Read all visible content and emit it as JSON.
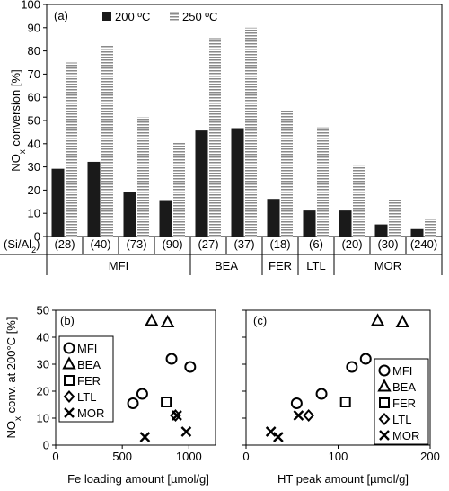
{
  "chart_data": [
    {
      "panel_label": "(a)",
      "type": "bar",
      "ylabel": "NOx conversion  [%]",
      "ylabel_main": "NO",
      "ylabel_sub": "x",
      "ylabel_rest": " conversion  [%]",
      "ylim": [
        0,
        100
      ],
      "yticks": [
        "0",
        "10",
        "20",
        "30",
        "40",
        "50",
        "60",
        "70",
        "80",
        "90",
        "100"
      ],
      "row_label": "(Si/Al",
      "row_label_sub": "2",
      "row_label_end": ")",
      "categories": [
        "(28)",
        "(40)",
        "(73)",
        "(90)",
        "(27)",
        "(37)",
        "(18)",
        "(6)",
        "(20)",
        "(30)",
        "(240)"
      ],
      "groups": [
        {
          "name": "MFI",
          "count": 4
        },
        {
          "name": "BEA",
          "count": 2
        },
        {
          "name": "FER",
          "count": 1
        },
        {
          "name": "LTL",
          "count": 1
        },
        {
          "name": "MOR",
          "count": 3
        }
      ],
      "series": [
        {
          "name": "200 ºC",
          "values": [
            29,
            32,
            19,
            15.5,
            45.5,
            46.5,
            16,
            11,
            11,
            5,
            3
          ],
          "style": "solid",
          "color": "#1a1a1a"
        },
        {
          "name": "250 ºC",
          "values": [
            75,
            82.5,
            51.5,
            40.5,
            85.5,
            90,
            54.5,
            47,
            30.5,
            16,
            7.5
          ],
          "style": "hatched",
          "color": "#8a8a8a"
        }
      ],
      "grid": false,
      "legend_position": "top"
    },
    {
      "panel_label": "(b)",
      "type": "scatter",
      "ylabel": "NOx conv. at 200°C  [%]",
      "ylabel_main": "NO",
      "ylabel_sub": "x",
      "ylabel_rest": " conv. at 200°C  [%]",
      "xlabel": "Fe loading amount  [µmol/g]",
      "xlim": [
        0,
        1200
      ],
      "ylim": [
        0,
        50
      ],
      "xticks": [
        "0",
        "500",
        "1000"
      ],
      "yticks": [
        "0",
        "10",
        "20",
        "30",
        "40",
        "50"
      ],
      "legend_position": "left",
      "series": [
        {
          "name": "MFI",
          "marker": "circle",
          "x": [
            580,
            650,
            870,
            1010
          ],
          "y": [
            15.5,
            19,
            32,
            29
          ]
        },
        {
          "name": "BEA",
          "marker": "triangle",
          "x": [
            720,
            840
          ],
          "y": [
            46,
            45.5
          ]
        },
        {
          "name": "FER",
          "marker": "square",
          "x": [
            830
          ],
          "y": [
            16
          ]
        },
        {
          "name": "LTL",
          "marker": "diamond",
          "x": [
            900
          ],
          "y": [
            11
          ]
        },
        {
          "name": "MOR",
          "marker": "x",
          "x": [
            670,
            910,
            980
          ],
          "y": [
            3,
            11,
            5
          ]
        }
      ]
    },
    {
      "panel_label": "(c)",
      "type": "scatter",
      "xlabel": "HT peak amount  [µmol/g]",
      "xlim": [
        0,
        200
      ],
      "ylim": [
        0,
        50
      ],
      "xticks": [
        "0",
        "100",
        "200"
      ],
      "yticks": [
        "0",
        "10",
        "20",
        "30",
        "40",
        "50"
      ],
      "legend_position": "bottom-right",
      "series": [
        {
          "name": "MFI",
          "marker": "circle",
          "x": [
            55,
            82,
            115,
            130
          ],
          "y": [
            15.5,
            19,
            29,
            32
          ]
        },
        {
          "name": "BEA",
          "marker": "triangle",
          "x": [
            143,
            170
          ],
          "y": [
            46,
            45.5
          ]
        },
        {
          "name": "FER",
          "marker": "square",
          "x": [
            108
          ],
          "y": [
            16
          ]
        },
        {
          "name": "LTL",
          "marker": "diamond",
          "x": [
            68
          ],
          "y": [
            11
          ]
        },
        {
          "name": "MOR",
          "marker": "x",
          "x": [
            27,
            35,
            57
          ],
          "y": [
            5,
            3,
            11
          ]
        }
      ]
    }
  ]
}
